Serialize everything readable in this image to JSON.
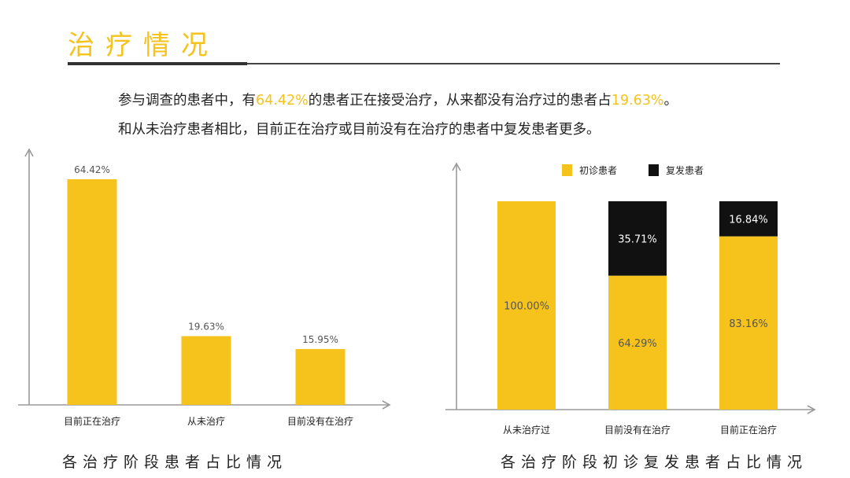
{
  "header": {
    "title": "治疗情况"
  },
  "summary": {
    "line1": [
      {
        "text": "参与调查的患者中，有",
        "hl": false
      },
      {
        "text": "64.42%",
        "hl": true
      },
      {
        "text": "的患者正在接受治疗，从来都没有治疗过的患者占",
        "hl": false
      },
      {
        "text": "19.63%",
        "hl": true
      },
      {
        "text": "。",
        "hl": false
      }
    ],
    "line2": "和从未治疗患者相比，目前正在治疗或目前没有在治疗的患者中复发患者更多。"
  },
  "colors": {
    "accent": "#f6c21c",
    "dark": "#111111",
    "axis": "#9a9a9a"
  },
  "chart_data": [
    {
      "type": "bar",
      "title": "各治疗阶段患者占比情况",
      "categories": [
        "目前正在治疗",
        "从未治疗",
        "目前没有在治疗"
      ],
      "values": [
        64.42,
        19.63,
        15.95
      ],
      "value_labels": [
        "64.42%",
        "19.63%",
        "15.95%"
      ],
      "unit": "%",
      "ylim": [
        0,
        70
      ],
      "grid": false
    },
    {
      "type": "bar",
      "stacked": true,
      "title": "各治疗阶段初诊复发患者占比情况",
      "categories": [
        "从未治疗过",
        "目前没有在治疗",
        "目前正在治疗"
      ],
      "series": [
        {
          "name": "初诊患者",
          "color": "#f6c21c",
          "values": [
            100.0,
            64.29,
            83.16
          ],
          "labels": [
            "100.00%",
            "64.29%",
            "83.16%"
          ]
        },
        {
          "name": "复发患者",
          "color": "#111111",
          "values": [
            0,
            35.71,
            16.84
          ],
          "labels": [
            "",
            "35.71%",
            "16.84%"
          ]
        }
      ],
      "ylim": [
        0,
        100
      ],
      "legend": "top",
      "grid": false
    }
  ]
}
